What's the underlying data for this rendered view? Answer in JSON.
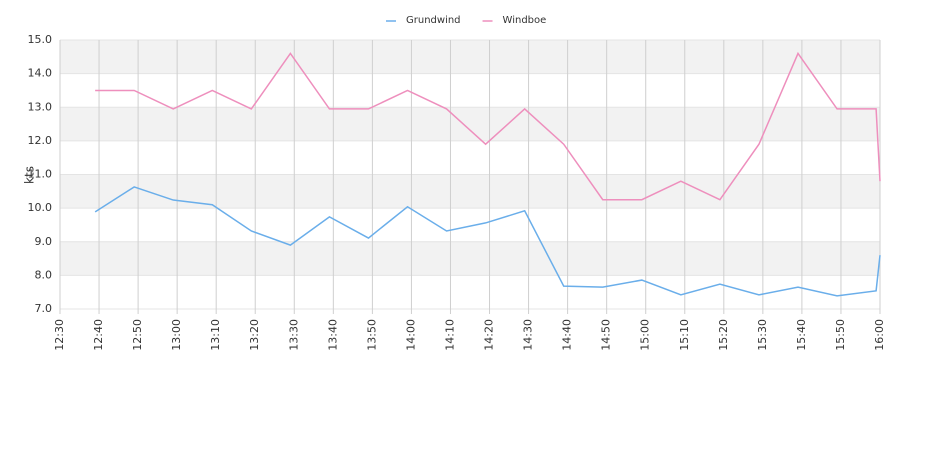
{
  "chart_data": {
    "type": "line",
    "y_label": "kts",
    "x": [
      "12:39",
      "12:49",
      "12:59",
      "13:09",
      "13:19",
      "13:29",
      "13:39",
      "13:49",
      "13:59",
      "14:09",
      "14:19",
      "14:29",
      "14:39",
      "14:49",
      "14:59",
      "15:09",
      "15:19",
      "15:29",
      "15:39",
      "15:49",
      "15:59",
      "16:00"
    ],
    "series": [
      {
        "name": "Grundwind",
        "color": "#6aaeea",
        "values": [
          9.89,
          10.63,
          10.24,
          10.1,
          9.32,
          8.9,
          9.74,
          9.11,
          10.04,
          9.32,
          9.56,
          9.92,
          7.68,
          7.65,
          7.86,
          7.42,
          7.74,
          7.42,
          7.65,
          7.39,
          7.54,
          8.6
        ]
      },
      {
        "name": "Windboe",
        "color": "#ee8fbd",
        "values": [
          13.5,
          13.5,
          12.95,
          13.5,
          12.95,
          14.6,
          12.95,
          12.95,
          13.5,
          12.95,
          11.9,
          12.95,
          11.9,
          10.25,
          10.25,
          10.8,
          10.25,
          11.9,
          14.6,
          12.95,
          12.95,
          10.8
        ]
      }
    ],
    "xlim": [
      "12:30",
      "16:00"
    ],
    "xticks": [
      "12:30",
      "12:40",
      "12:50",
      "13:00",
      "13:10",
      "13:20",
      "13:30",
      "13:40",
      "13:50",
      "14:00",
      "14:10",
      "14:20",
      "14:30",
      "14:40",
      "14:50",
      "15:00",
      "15:10",
      "15:20",
      "15:30",
      "15:40",
      "15:50",
      "16:00"
    ],
    "ylim": [
      7,
      15
    ],
    "yticks": [
      {
        "value": 7,
        "label": "7.0"
      },
      {
        "value": 8,
        "label": "8.0"
      },
      {
        "value": 9,
        "label": "9.0"
      },
      {
        "value": 10,
        "label": "10.0"
      },
      {
        "value": 11,
        "label": "11.0"
      },
      {
        "value": 12,
        "label": "12.0"
      },
      {
        "value": 13,
        "label": "13.0"
      },
      {
        "value": 14,
        "label": "14.0"
      },
      {
        "value": 15,
        "label": "15.0"
      }
    ],
    "grid": true,
    "band_color": "#f2f2f2",
    "legend": "top"
  }
}
